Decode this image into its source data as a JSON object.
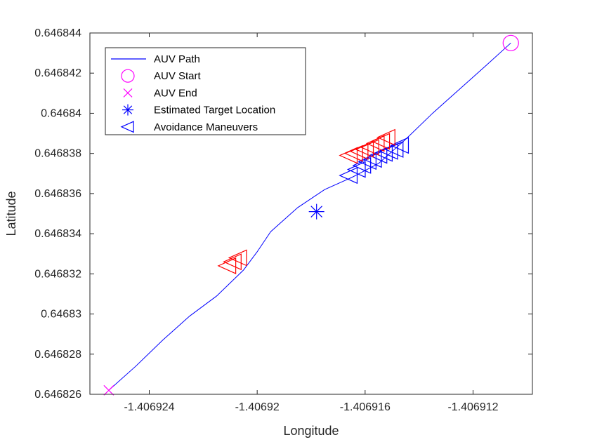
{
  "chart_data": {
    "type": "line",
    "title": "",
    "xlabel": "Longitude",
    "ylabel": "Latitude",
    "xlim": [
      -1.4069262,
      -1.4069098
    ],
    "ylim": [
      0.646826,
      0.646844
    ],
    "x_ticks": [
      -1.406924,
      -1.40692,
      -1.406916,
      -1.406912
    ],
    "x_tick_labels": [
      "-1.406924",
      "-1.40692",
      "-1.406916",
      "-1.406912"
    ],
    "y_ticks": [
      0.646826,
      0.646828,
      0.64683,
      0.646832,
      0.646834,
      0.646836,
      0.646838,
      0.64684,
      0.646842,
      0.646844
    ],
    "y_tick_labels": [
      "0.646826",
      "0.646828",
      "0.64683",
      "0.646832",
      "0.646834",
      "0.646836",
      "0.646838",
      "0.64684",
      "0.646842",
      "0.646844"
    ],
    "legend_position": "top-left",
    "colors": {
      "path": "#0000ff",
      "start": "#ff00ff",
      "end": "#ff00ff",
      "target": "#0000ff",
      "maneuver_red": "#ff0000",
      "maneuver_blue": "#0000ff",
      "axis": "#262626"
    },
    "series": [
      {
        "name": "AUV Path",
        "kind": "line",
        "color": "#0000ff",
        "x": [
          -1.4069255,
          -1.4069245,
          -1.4069235,
          -1.4069225,
          -1.4069215,
          -1.4069205,
          -1.40692,
          -1.4069195,
          -1.4069185,
          -1.4069175,
          -1.4069165,
          -1.4069155,
          -1.4069145,
          -1.4069135,
          -1.4069125,
          -1.4069115,
          -1.4069106
        ],
        "y": [
          0.6468262,
          0.6468274,
          0.6468287,
          0.6468299,
          0.6468309,
          0.6468322,
          0.6468331,
          0.6468341,
          0.6468353,
          0.6468362,
          0.6468368,
          0.6468375,
          0.6468387,
          0.64684,
          0.6468412,
          0.6468424,
          0.6468435
        ]
      },
      {
        "name": "AUV Start",
        "kind": "marker",
        "marker": "circle",
        "color": "#ff00ff",
        "x": [
          -1.4069106
        ],
        "y": [
          0.6468435
        ]
      },
      {
        "name": "AUV End",
        "kind": "marker",
        "marker": "x",
        "color": "#ff00ff",
        "x": [
          -1.4069255
        ],
        "y": [
          0.6468262
        ]
      },
      {
        "name": "Estimated Target Location",
        "kind": "marker",
        "marker": "asterisk",
        "color": "#0000ff",
        "x": [
          -1.4069178
        ],
        "y": [
          0.6468351
        ]
      },
      {
        "name": "Avoidance Maneuvers",
        "kind": "marker",
        "marker": "triangle-left",
        "color": "#0000ff",
        "x": [
          -1.4069211,
          -1.4069209,
          -1.4069207,
          -1.4069166,
          -1.4069163,
          -1.4069161,
          -1.4069159,
          -1.4069157,
          -1.4069155,
          -1.4069153,
          -1.4069151,
          -1.4069149,
          -1.4069147
        ],
        "y": [
          0.6468324,
          0.6468326,
          0.6468328,
          0.6468369,
          0.6468372,
          0.6468374,
          0.6468376,
          0.6468377,
          0.6468379,
          0.646838,
          0.6468381,
          0.6468382,
          0.6468384
        ],
        "color_by_point": [
          "#ff0000",
          "#ff0000",
          "#ff0000",
          "#0000ff",
          "#0000ff",
          "#0000ff",
          "#0000ff",
          "#0000ff",
          "#0000ff",
          "#0000ff",
          "#0000ff",
          "#0000ff",
          "#0000ff"
        ],
        "extra_red": {
          "x": [
            -1.4069166,
            -1.4069164,
            -1.4069162,
            -1.406916,
            -1.4069158,
            -1.4069156,
            -1.4069154,
            -1.4069152
          ],
          "y": [
            0.6468379,
            0.646838,
            0.6468381,
            0.6468382,
            0.6468383,
            0.6468385,
            0.6468386,
            0.6468388
          ]
        }
      }
    ],
    "legend": [
      {
        "label": "AUV Path",
        "marker": "line",
        "color": "#0000ff"
      },
      {
        "label": "AUV Start",
        "marker": "circle",
        "color": "#ff00ff"
      },
      {
        "label": "AUV End",
        "marker": "x",
        "color": "#ff00ff"
      },
      {
        "label": "Estimated Target Location",
        "marker": "asterisk",
        "color": "#0000ff"
      },
      {
        "label": "Avoidance Maneuvers",
        "marker": "triangle-left",
        "color": "#0000ff"
      }
    ]
  }
}
